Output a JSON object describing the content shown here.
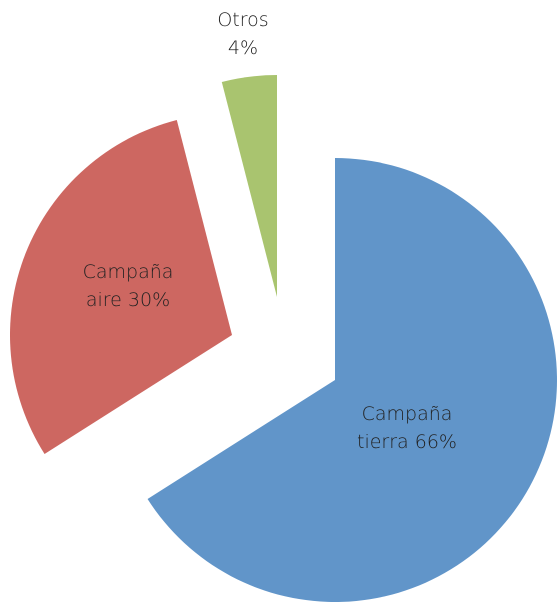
{
  "chart_data": {
    "type": "pie",
    "categories": [
      "Campaña tierra",
      "Campaña aire",
      "Otros"
    ],
    "values": [
      66,
      30,
      4
    ],
    "value_labels": [
      "66%",
      "30%",
      "4%"
    ],
    "colors": [
      "#6195c9",
      "#cd6761",
      "#a9c46f"
    ]
  }
}
